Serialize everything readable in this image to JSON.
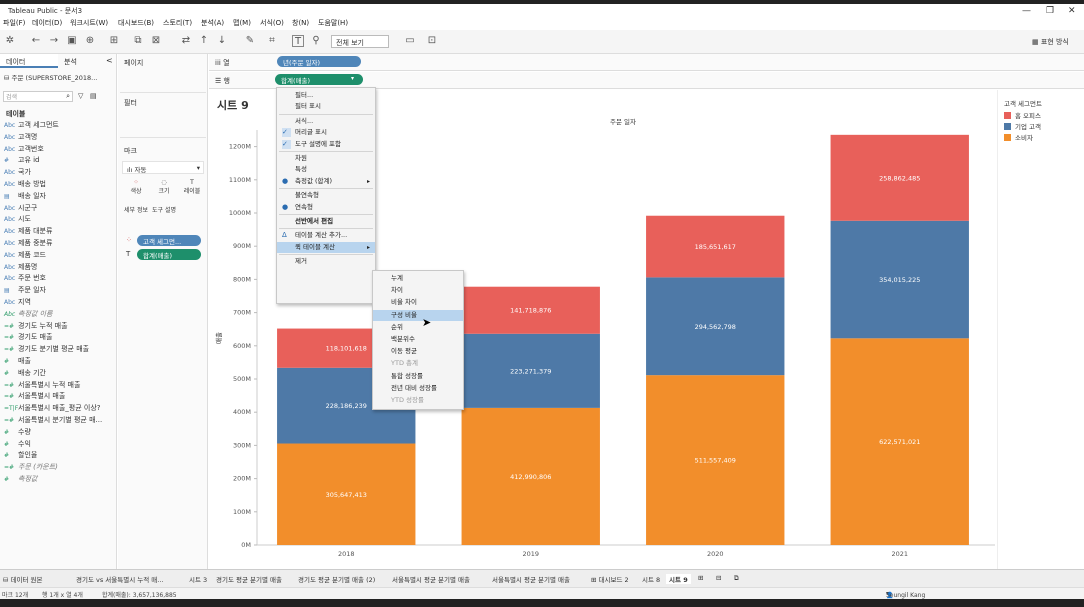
{
  "window": {
    "title": "Tableau Public - 문서3",
    "minimize": "—",
    "maximize": "❐",
    "close": "✕"
  },
  "menubar": [
    "파일(F)",
    "데이터(D)",
    "워크시트(W)",
    "대시보드(B)",
    "스토리(T)",
    "분석(A)",
    "맵(M)",
    "서식(O)",
    "창(N)",
    "도움말(H)"
  ],
  "toolbar": {
    "view_select": "전체 보기",
    "show_me": "표현 방식"
  },
  "left_pane": {
    "tab_data": "데이터",
    "tab_analysis": "분석",
    "collapse": "<",
    "datasource": "주문 (SUPERSTORE_2018...",
    "search_placeholder": "검색",
    "table_header": "테이블",
    "fields": [
      {
        "icon": "Abc",
        "name": "고객 세그먼트",
        "kind": "dim"
      },
      {
        "icon": "Abc",
        "name": "고객명",
        "kind": "dim"
      },
      {
        "icon": "Abc",
        "name": "고객번호",
        "kind": "dim"
      },
      {
        "icon": "#",
        "name": "고유 id",
        "kind": "dim"
      },
      {
        "icon": "Abc",
        "name": "국가",
        "kind": "dim"
      },
      {
        "icon": "Abc",
        "name": "배송 방법",
        "kind": "dim"
      },
      {
        "icon": "▤",
        "name": "배송 일자",
        "kind": "dim"
      },
      {
        "icon": "Abc",
        "name": "시군구",
        "kind": "dim"
      },
      {
        "icon": "Abc",
        "name": "시도",
        "kind": "dim"
      },
      {
        "icon": "Abc",
        "name": "제품 대분류",
        "kind": "dim"
      },
      {
        "icon": "Abc",
        "name": "제품 중분류",
        "kind": "dim"
      },
      {
        "icon": "Abc",
        "name": "제품 코드",
        "kind": "dim"
      },
      {
        "icon": "Abc",
        "name": "제품명",
        "kind": "dim"
      },
      {
        "icon": "Abc",
        "name": "주문 번호",
        "kind": "dim"
      },
      {
        "icon": "▤",
        "name": "주문 일자",
        "kind": "dim"
      },
      {
        "icon": "Abc",
        "name": "지역",
        "kind": "dim"
      },
      {
        "icon": "Abc",
        "name": "측정값 이름",
        "kind": "it"
      },
      {
        "icon": "=#",
        "name": "경기도 누적 매출",
        "kind": "meas"
      },
      {
        "icon": "=#",
        "name": "경기도 매출",
        "kind": "meas"
      },
      {
        "icon": "=#",
        "name": "경기도 분기별 평균 매출",
        "kind": "meas"
      },
      {
        "icon": "#",
        "name": "매출",
        "kind": "meas"
      },
      {
        "icon": "#",
        "name": "배송 기간",
        "kind": "meas"
      },
      {
        "icon": "=#",
        "name": "서울특별시 누적 매출",
        "kind": "meas"
      },
      {
        "icon": "=#",
        "name": "서울특별시 매출",
        "kind": "meas"
      },
      {
        "icon": "=T|F",
        "name": "서울특별시 매출_평균 이상?",
        "kind": "meas"
      },
      {
        "icon": "=#",
        "name": "서울특별시 분기별 평균 매...",
        "kind": "meas"
      },
      {
        "icon": "#",
        "name": "수량",
        "kind": "meas"
      },
      {
        "icon": "#",
        "name": "수익",
        "kind": "meas"
      },
      {
        "icon": "#",
        "name": "할인율",
        "kind": "meas"
      },
      {
        "icon": "=#",
        "name": "주문 (카운트)",
        "kind": "it"
      },
      {
        "icon": "#",
        "name": "측정값",
        "kind": "it"
      }
    ]
  },
  "shelves": {
    "pages": "페이지",
    "filters": "필터",
    "marks": "마크",
    "mark_type": "자동",
    "color": "색상",
    "size": "크기",
    "label": "레이블",
    "detail": "세부 정보",
    "tooltip": "도구 설명",
    "mark_pill_color": "고객 세그먼...",
    "mark_pill_label": "합계(매출)",
    "columns": "열",
    "rows": "행",
    "col_pill": "년(주문 일자)",
    "row_pill": "합계(매출)"
  },
  "sheet": {
    "title": "시트 9",
    "header": "주문 일자"
  },
  "legend": {
    "title": "고객 세그먼트",
    "items": [
      {
        "label": "홈 오피스",
        "color": "#e8605a"
      },
      {
        "label": "기업 고객",
        "color": "#4e79a7"
      },
      {
        "label": "소비자",
        "color": "#f28e2b"
      }
    ]
  },
  "chart_data": {
    "type": "bar",
    "stacked": true,
    "title": "시트 9",
    "x_header": "주문 일자",
    "ylabel": "매출",
    "categories": [
      "2018",
      "2019",
      "2020",
      "2021"
    ],
    "ylim": [
      0,
      1250000000
    ],
    "yticks": [
      "0M",
      "100M",
      "200M",
      "300M",
      "400M",
      "500M",
      "600M",
      "700M",
      "800M",
      "900M",
      "1000M",
      "1100M",
      "1200M"
    ],
    "series": [
      {
        "name": "소비자",
        "color": "#f28e2b",
        "values": [
          305647413,
          412990806,
          511557409,
          622571021
        ],
        "labels": [
          "305,647,413",
          "412,990,806",
          "511,557,409",
          "622,571,021"
        ]
      },
      {
        "name": "기업 고객",
        "color": "#4e79a7",
        "values": [
          228186239,
          223271379,
          294562798,
          354015225
        ],
        "labels": [
          "228,186,239",
          "223,271,379",
          "294,562,798",
          "354,015,225"
        ]
      },
      {
        "name": "홈 오피스",
        "color": "#e8605a",
        "values": [
          118101618,
          141718876,
          185651617,
          258862485
        ],
        "labels": [
          "118,101,618",
          "141,718,876",
          "185,651,617",
          "258,862,485"
        ]
      }
    ]
  },
  "context_menu": {
    "items": [
      {
        "label": "필터...",
        "check": ""
      },
      {
        "label": "필터 표시",
        "check": ""
      },
      {
        "sep": true
      },
      {
        "label": "서식...",
        "check": ""
      },
      {
        "label": "머리글 표시",
        "check": "✓"
      },
      {
        "label": "도구 설명에 포함",
        "check": "✓"
      },
      {
        "sep": true
      },
      {
        "label": "차원",
        "check": ""
      },
      {
        "label": "특성",
        "check": ""
      },
      {
        "label": "측정값 (합계)",
        "check": "●",
        "arrow": "▸"
      },
      {
        "sep": true
      },
      {
        "label": "불연속형",
        "check": ""
      },
      {
        "label": "연속형",
        "check": "●"
      },
      {
        "sep": true
      },
      {
        "label": "선반에서 편집",
        "check": "",
        "bold": true
      },
      {
        "sep": true
      },
      {
        "label": "테이블 계산 추가...",
        "check": "Δ"
      },
      {
        "label": "퀵 테이블 계산",
        "check": "",
        "arrow": "▸",
        "hl": true
      },
      {
        "sep": true
      },
      {
        "label": "제거",
        "check": ""
      }
    ]
  },
  "submenu": {
    "items": [
      {
        "label": "누계"
      },
      {
        "label": "차이"
      },
      {
        "label": "비율 차이"
      },
      {
        "label": "구성 비율",
        "hl": true
      },
      {
        "label": "순위"
      },
      {
        "label": "백분위수"
      },
      {
        "label": "이동 평균"
      },
      {
        "label": "YTD 총계",
        "dis": true
      },
      {
        "label": "통합 성장률"
      },
      {
        "label": "전년 대비 성장률"
      },
      {
        "label": "YTD 성장률",
        "dis": true
      }
    ]
  },
  "bottom_tabs": [
    "데이터 원본",
    "경기도 vs 서울특별시 누적 매...",
    "시트 3",
    "경기도 평균 분기별 매출",
    "경기도 평균 분기별 매출 (2)",
    "서울특별시 평균 분기별 매출",
    "서울특별시 평균 분기별 매출",
    "대시보드 2",
    "시트 8",
    "시트 9"
  ],
  "status": {
    "marks": "마크 12개",
    "rows_cols": "행 1개 x 열 4개",
    "sum": "합계(매출): 3,657,136,885",
    "user": "Seungil Kang"
  }
}
